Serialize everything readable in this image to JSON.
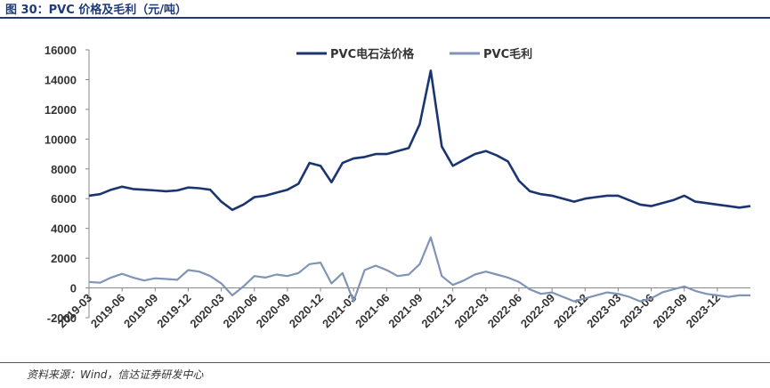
{
  "figure": {
    "title": "图 30：PVC 价格及毛利（元/吨）",
    "source": "资料来源：Wind，信达证券研发中心"
  },
  "chart_data": {
    "type": "line",
    "title": "",
    "xlabel": "",
    "ylabel": "",
    "ylim": [
      -2000,
      16000
    ],
    "yticks": [
      -2000,
      0,
      2000,
      4000,
      6000,
      8000,
      10000,
      12000,
      14000,
      16000
    ],
    "xticks": [
      "2019-03",
      "2019-06",
      "2019-09",
      "2019-12",
      "2020-03",
      "2020-06",
      "2020-09",
      "2020-12",
      "2021-03",
      "2021-06",
      "2021-09",
      "2021-12",
      "2022-03",
      "2022-06",
      "2022-09",
      "2022-12",
      "2023-03",
      "2023-06",
      "2023-09",
      "2023-12"
    ],
    "grid": false,
    "legend": "top-center",
    "series": [
      {
        "name": "PVC电石法价格",
        "color": "#1a3570",
        "points": [
          [
            "2019-03",
            6200
          ],
          [
            "2019-04",
            6300
          ],
          [
            "2019-05",
            6600
          ],
          [
            "2019-06",
            6800
          ],
          [
            "2019-07",
            6650
          ],
          [
            "2019-08",
            6600
          ],
          [
            "2019-09",
            6550
          ],
          [
            "2019-10",
            6500
          ],
          [
            "2019-11",
            6550
          ],
          [
            "2019-12",
            6750
          ],
          [
            "2020-01",
            6700
          ],
          [
            "2020-02",
            6600
          ],
          [
            "2020-03",
            5800
          ],
          [
            "2020-04",
            5250
          ],
          [
            "2020-05",
            5600
          ],
          [
            "2020-06",
            6100
          ],
          [
            "2020-07",
            6200
          ],
          [
            "2020-08",
            6400
          ],
          [
            "2020-09",
            6600
          ],
          [
            "2020-10",
            7000
          ],
          [
            "2020-11",
            8400
          ],
          [
            "2020-12",
            8200
          ],
          [
            "2021-01",
            7100
          ],
          [
            "2021-02",
            8400
          ],
          [
            "2021-03",
            8700
          ],
          [
            "2021-04",
            8800
          ],
          [
            "2021-05",
            9000
          ],
          [
            "2021-06",
            9000
          ],
          [
            "2021-07",
            9200
          ],
          [
            "2021-08",
            9400
          ],
          [
            "2021-09",
            11000
          ],
          [
            "2021-10",
            14600
          ],
          [
            "2021-11",
            9500
          ],
          [
            "2021-12",
            8200
          ],
          [
            "2022-01",
            8600
          ],
          [
            "2022-02",
            9000
          ],
          [
            "2022-03",
            9200
          ],
          [
            "2022-04",
            8900
          ],
          [
            "2022-05",
            8500
          ],
          [
            "2022-06",
            7200
          ],
          [
            "2022-07",
            6500
          ],
          [
            "2022-08",
            6300
          ],
          [
            "2022-09",
            6200
          ],
          [
            "2022-10",
            6000
          ],
          [
            "2022-11",
            5800
          ],
          [
            "2022-12",
            6000
          ],
          [
            "2023-01",
            6100
          ],
          [
            "2023-02",
            6200
          ],
          [
            "2023-03",
            6200
          ],
          [
            "2023-04",
            5900
          ],
          [
            "2023-05",
            5600
          ],
          [
            "2023-06",
            5500
          ],
          [
            "2023-07",
            5700
          ],
          [
            "2023-08",
            5900
          ],
          [
            "2023-09",
            6200
          ],
          [
            "2023-10",
            5800
          ],
          [
            "2023-11",
            5700
          ],
          [
            "2023-12",
            5600
          ],
          [
            "2024-01",
            5500
          ],
          [
            "2024-02",
            5400
          ],
          [
            "2024-03",
            5500
          ]
        ]
      },
      {
        "name": "PVC毛利",
        "color": "#8094b5",
        "points": [
          [
            "2019-03",
            400
          ],
          [
            "2019-04",
            350
          ],
          [
            "2019-05",
            700
          ],
          [
            "2019-06",
            950
          ],
          [
            "2019-07",
            700
          ],
          [
            "2019-08",
            500
          ],
          [
            "2019-09",
            650
          ],
          [
            "2019-10",
            600
          ],
          [
            "2019-11",
            550
          ],
          [
            "2019-12",
            1200
          ],
          [
            "2020-01",
            1100
          ],
          [
            "2020-02",
            800
          ],
          [
            "2020-03",
            300
          ],
          [
            "2020-04",
            -500
          ],
          [
            "2020-05",
            100
          ],
          [
            "2020-06",
            800
          ],
          [
            "2020-07",
            700
          ],
          [
            "2020-08",
            900
          ],
          [
            "2020-09",
            800
          ],
          [
            "2020-10",
            1000
          ],
          [
            "2020-11",
            1600
          ],
          [
            "2020-12",
            1700
          ],
          [
            "2021-01",
            300
          ],
          [
            "2021-02",
            1000
          ],
          [
            "2021-03",
            -900
          ],
          [
            "2021-04",
            1200
          ],
          [
            "2021-05",
            1500
          ],
          [
            "2021-06",
            1200
          ],
          [
            "2021-07",
            800
          ],
          [
            "2021-08",
            900
          ],
          [
            "2021-09",
            1600
          ],
          [
            "2021-10",
            3400
          ],
          [
            "2021-11",
            800
          ],
          [
            "2021-12",
            200
          ],
          [
            "2022-01",
            500
          ],
          [
            "2022-02",
            900
          ],
          [
            "2022-03",
            1100
          ],
          [
            "2022-04",
            900
          ],
          [
            "2022-05",
            700
          ],
          [
            "2022-06",
            400
          ],
          [
            "2022-07",
            -100
          ],
          [
            "2022-08",
            -400
          ],
          [
            "2022-09",
            -300
          ],
          [
            "2022-10",
            -600
          ],
          [
            "2022-11",
            -900
          ],
          [
            "2022-12",
            -700
          ],
          [
            "2023-01",
            -500
          ],
          [
            "2023-02",
            -300
          ],
          [
            "2023-03",
            -400
          ],
          [
            "2023-04",
            -600
          ],
          [
            "2023-05",
            -900
          ],
          [
            "2023-06",
            -700
          ],
          [
            "2023-07",
            -300
          ],
          [
            "2023-08",
            -100
          ],
          [
            "2023-09",
            100
          ],
          [
            "2023-10",
            -200
          ],
          [
            "2023-11",
            -400
          ],
          [
            "2023-12",
            -500
          ],
          [
            "2024-01",
            -600
          ],
          [
            "2024-02",
            -500
          ],
          [
            "2024-03",
            -500
          ]
        ]
      }
    ]
  }
}
